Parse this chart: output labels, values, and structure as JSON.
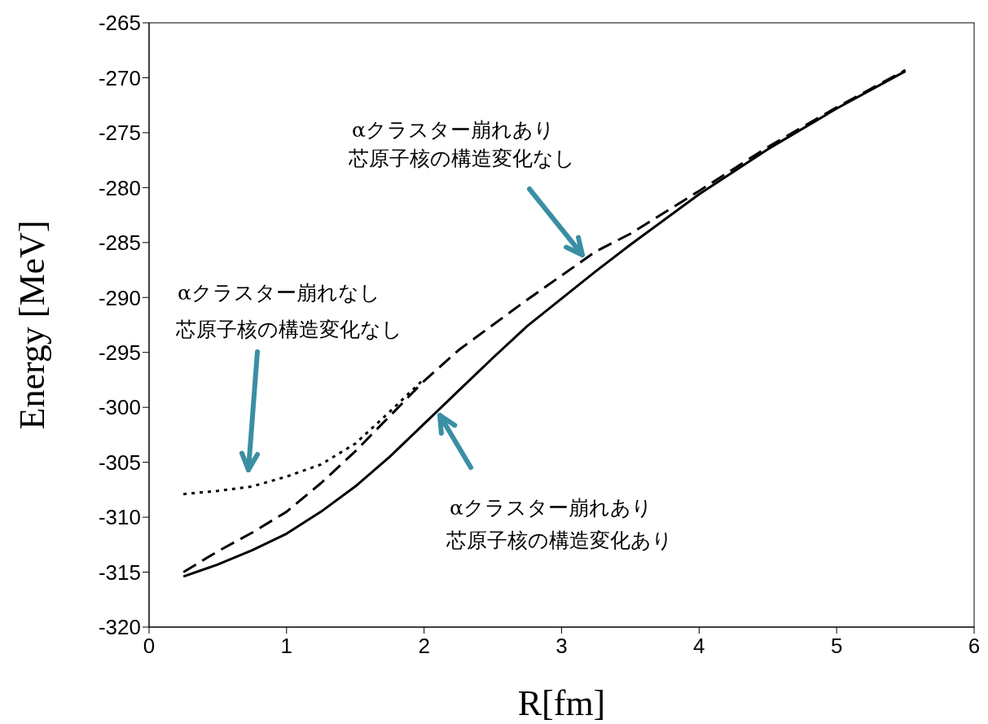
{
  "chart_data": {
    "type": "line",
    "xlabel": "R[fm]",
    "ylabel": "Energy [MeV]",
    "xlim": [
      0,
      6
    ],
    "xticks": [
      0,
      1,
      2,
      3,
      4,
      5,
      6
    ],
    "ylim": [
      -320,
      -265
    ],
    "yticks": [
      -320,
      -315,
      -310,
      -305,
      -300,
      -295,
      -290,
      -285,
      -280,
      -275,
      -270,
      -265
    ],
    "series": [
      {
        "color": "#000000",
        "line_style": "solid",
        "x": [
          0.25,
          0.5,
          0.75,
          1.0,
          1.25,
          1.5,
          1.75,
          2.0,
          2.25,
          2.5,
          2.75,
          3.0,
          3.25,
          3.5,
          4.0,
          4.5,
          5.0,
          5.5
        ],
        "values": [
          -315.4,
          -314.3,
          -313.0,
          -311.5,
          -309.5,
          -307.2,
          -304.5,
          -301.5,
          -298.5,
          -295.5,
          -292.6,
          -290.1,
          -287.6,
          -285.2,
          -280.6,
          -276.5,
          -272.8,
          -269.4
        ]
      },
      {
        "color": "#000000",
        "line_style": "dashed",
        "x": [
          0.25,
          0.5,
          0.75,
          1.0,
          1.25,
          1.5,
          1.75,
          2.0,
          2.25,
          2.5,
          2.75,
          3.0,
          3.25,
          3.5,
          4.0,
          4.5,
          5.0,
          5.5
        ],
        "values": [
          -315.0,
          -313.1,
          -311.4,
          -309.5,
          -306.9,
          -304.0,
          -300.8,
          -297.6,
          -294.8,
          -292.5,
          -290.2,
          -288.0,
          -285.8,
          -284.2,
          -280.3,
          -276.3,
          -272.7,
          -269.3
        ]
      },
      {
        "color": "#000000",
        "line_style": "dotted",
        "x": [
          0.25,
          0.5,
          0.75,
          1.0,
          1.25,
          1.5,
          1.75,
          2.0
        ],
        "values": [
          -307.9,
          -307.6,
          -307.2,
          -306.3,
          -305.2,
          -303.3,
          -300.4,
          -297.4
        ]
      }
    ],
    "annotations": [
      "αクラスター崩れあり",
      "芯原子核の構造変化なし",
      "αクラスター崩れなし",
      "芯原子核の構造変化なし",
      "αクラスター崩れあり",
      "芯原子核の構造変化あり"
    ]
  }
}
